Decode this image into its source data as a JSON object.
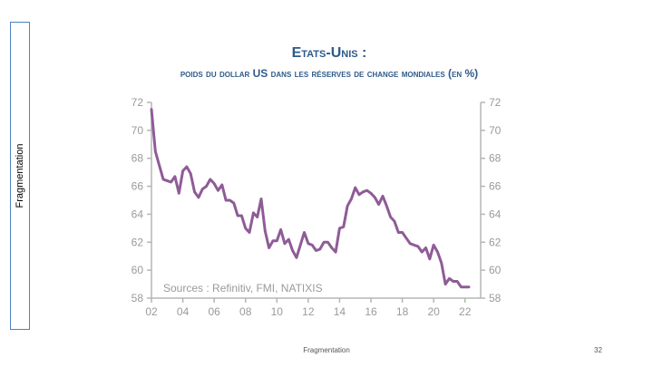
{
  "side_label": "Fragmentation",
  "footer": {
    "center": "Fragmentation",
    "page": "32"
  },
  "chart_data": {
    "type": "line",
    "title": "Etats-Unis :",
    "subtitle": "poids du dollar US dans les réserves de change mondiales (en %)",
    "source": "Sources : Refinitiv, FMI, NATIXIS",
    "xlim": [
      2002,
      2023
    ],
    "ylim": [
      58,
      72
    ],
    "x_ticks": [
      "02",
      "04",
      "06",
      "08",
      "10",
      "12",
      "14",
      "16",
      "18",
      "20",
      "22"
    ],
    "y_ticks": [
      58,
      60,
      62,
      64,
      66,
      68,
      70,
      72
    ],
    "series_color": "#8e5c96",
    "x": [
      2002.0,
      2002.25,
      2002.5,
      2002.75,
      2003.0,
      2003.25,
      2003.5,
      2003.75,
      2004.0,
      2004.25,
      2004.5,
      2004.75,
      2005.0,
      2005.25,
      2005.5,
      2005.75,
      2006.0,
      2006.25,
      2006.5,
      2006.75,
      2007.0,
      2007.25,
      2007.5,
      2007.75,
      2008.0,
      2008.25,
      2008.5,
      2008.75,
      2009.0,
      2009.25,
      2009.5,
      2009.75,
      2010.0,
      2010.25,
      2010.5,
      2010.75,
      2011.0,
      2011.25,
      2011.5,
      2011.75,
      2012.0,
      2012.25,
      2012.5,
      2012.75,
      2013.0,
      2013.25,
      2013.5,
      2013.75,
      2014.0,
      2014.25,
      2014.5,
      2014.75,
      2015.0,
      2015.25,
      2015.5,
      2015.75,
      2016.0,
      2016.25,
      2016.5,
      2016.75,
      2017.0,
      2017.25,
      2017.5,
      2017.75,
      2018.0,
      2018.25,
      2018.5,
      2018.75,
      2019.0,
      2019.25,
      2019.5,
      2019.75,
      2020.0,
      2020.25,
      2020.5,
      2020.75,
      2021.0,
      2021.25,
      2021.5,
      2021.75,
      2022.0,
      2022.25
    ],
    "y": [
      71.5,
      68.5,
      67.5,
      66.5,
      66.4,
      66.3,
      66.7,
      65.5,
      67.1,
      67.4,
      66.9,
      65.6,
      65.2,
      65.8,
      66.0,
      66.5,
      66.2,
      65.7,
      66.1,
      65.0,
      65.0,
      64.8,
      63.9,
      63.9,
      63.0,
      62.7,
      64.1,
      63.8,
      65.1,
      62.8,
      61.6,
      62.1,
      62.1,
      62.9,
      61.9,
      62.2,
      61.4,
      60.9,
      61.8,
      62.7,
      61.9,
      61.8,
      61.4,
      61.5,
      62.0,
      62.0,
      61.6,
      61.3,
      63.0,
      63.1,
      64.6,
      65.1,
      65.9,
      65.4,
      65.6,
      65.7,
      65.5,
      65.2,
      64.7,
      65.3,
      64.6,
      63.8,
      63.5,
      62.7,
      62.7,
      62.3,
      61.9,
      61.8,
      61.7,
      61.3,
      61.6,
      60.8,
      61.8,
      61.3,
      60.5,
      59.0,
      59.4,
      59.2,
      59.2,
      58.8,
      58.8,
      58.8
    ]
  }
}
